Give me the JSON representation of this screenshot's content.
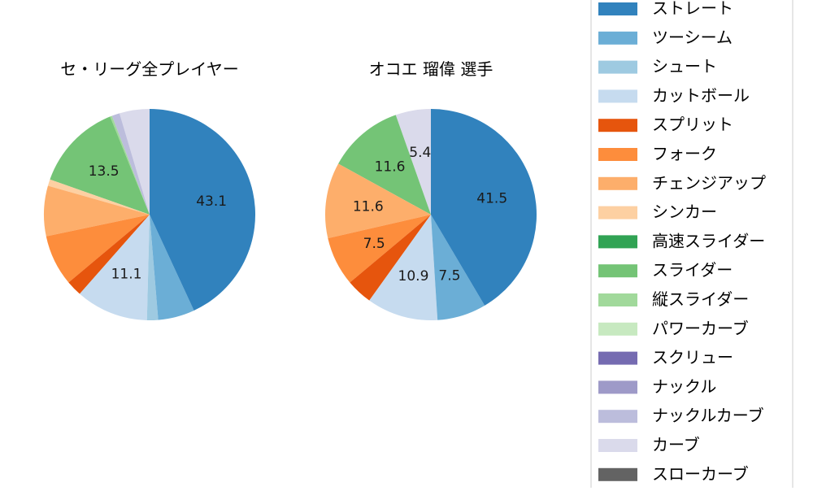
{
  "chart_data": [
    {
      "type": "pie",
      "title": "セ・リーグ全プレイヤー",
      "labels": [
        "ストレート",
        "ツーシーム",
        "シュート",
        "カットボール",
        "スプリット",
        "フォーク",
        "チェンジアップ",
        "シンカー",
        "高速スライダー",
        "スライダー",
        "縦スライダー",
        "パワーカーブ",
        "スクリュー",
        "ナックル",
        "ナックルカーブ",
        "カーブ",
        "スローカーブ"
      ],
      "values": [
        43.1,
        5.6,
        1.7,
        11.1,
        2.4,
        7.8,
        7.7,
        1.0,
        0.0,
        13.5,
        0.3,
        0.0,
        0.0,
        0.0,
        1.2,
        4.6,
        0.0
      ],
      "data_labels": [
        "43.1",
        "",
        "",
        "11.1",
        "",
        "",
        "",
        "",
        "",
        "13.5",
        "",
        "",
        "",
        "",
        "",
        "",
        ""
      ],
      "start_angle": "top (12 o'clock)",
      "direction": "clockwise"
    },
    {
      "type": "pie",
      "title": "オコエ 瑠偉  選手",
      "labels": [
        "ストレート",
        "ツーシーム",
        "シュート",
        "カットボール",
        "スプリット",
        "フォーク",
        "チェンジアップ",
        "シンカー",
        "高速スライダー",
        "スライダー",
        "縦スライダー",
        "パワーカーブ",
        "スクリュー",
        "ナックル",
        "ナックルカーブ",
        "カーブ",
        "スローカーブ"
      ],
      "values": [
        41.5,
        7.5,
        0.0,
        10.9,
        4.0,
        7.5,
        11.6,
        0.0,
        0.0,
        11.6,
        0.0,
        0.0,
        0.0,
        0.0,
        0.0,
        5.4,
        0.0
      ],
      "data_labels": [
        "41.5",
        "7.5",
        "",
        "10.9",
        "",
        "7.5",
        "11.6",
        "",
        "",
        "11.6",
        "",
        "",
        "",
        "",
        "",
        "5.4",
        ""
      ],
      "start_angle": "top (12 o'clock)",
      "direction": "clockwise"
    }
  ],
  "legend": {
    "placement": "right",
    "entries": [
      {
        "label": "ストレート",
        "color": "#3182bd"
      },
      {
        "label": "ツーシーム",
        "color": "#6baed6"
      },
      {
        "label": "シュート",
        "color": "#9ecae1"
      },
      {
        "label": "カットボール",
        "color": "#c6dbef"
      },
      {
        "label": "スプリット",
        "color": "#e6550d"
      },
      {
        "label": "フォーク",
        "color": "#fd8d3c"
      },
      {
        "label": "チェンジアップ",
        "color": "#fdae6b"
      },
      {
        "label": "シンカー",
        "color": "#fdd0a2"
      },
      {
        "label": "高速スライダー",
        "color": "#31a354"
      },
      {
        "label": "スライダー",
        "color": "#74c476"
      },
      {
        "label": "縦スライダー",
        "color": "#a1d99b"
      },
      {
        "label": "パワーカーブ",
        "color": "#c7e9c0"
      },
      {
        "label": "スクリュー",
        "color": "#756bb1"
      },
      {
        "label": "ナックル",
        "color": "#9e9ac8"
      },
      {
        "label": "ナックルカーブ",
        "color": "#bcbddc"
      },
      {
        "label": "カーブ",
        "color": "#dadaeb"
      },
      {
        "label": "スローカーブ",
        "color": "#636363"
      }
    ]
  }
}
